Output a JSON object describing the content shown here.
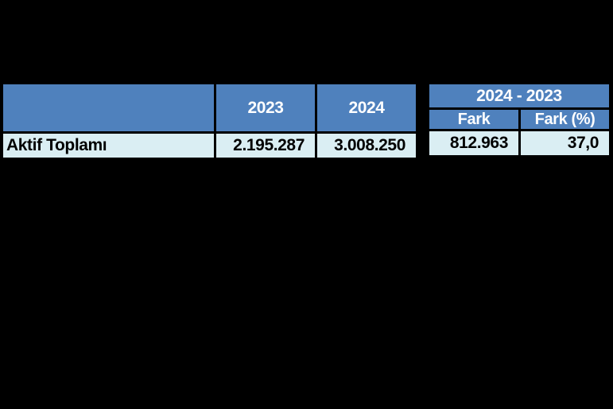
{
  "page": {
    "background_color": "#000000"
  },
  "colors": {
    "header_bg": "#4F81BD",
    "header_text": "#FFFFFF",
    "row_bg": "#DAEEF3",
    "row_text": "#000000",
    "grid_border": "#000000"
  },
  "main_table": {
    "header": {
      "label_col": "",
      "year_2023": "2023",
      "year_2024": "2024"
    },
    "rows": [
      {
        "label": "Aktif Toplamı",
        "value_2023": "2.195.287",
        "value_2024": "3.008.250"
      }
    ]
  },
  "diff_table": {
    "span_header": "2024 - 2023",
    "sub_headers": {
      "fark": "Fark",
      "fark_pct": "Fark (%)"
    },
    "rows": [
      {
        "fark": "812.963",
        "fark_pct": "37,0"
      }
    ]
  },
  "chart_data": {
    "type": "table",
    "title": "",
    "columns": [
      "",
      "2023",
      "2024",
      "Fark",
      "Fark (%)"
    ],
    "column_groups": [
      {
        "label": "2024 - 2023",
        "spans": [
          "Fark",
          "Fark (%)"
        ]
      }
    ],
    "rows": [
      [
        "Aktif Toplamı",
        "2.195.287",
        "3.008.250",
        "812.963",
        "37,0"
      ]
    ],
    "numeric_values": {
      "aktif_toplami_2023": 2195287,
      "aktif_toplami_2024": 3008250,
      "fark": 812963,
      "fark_pct": 37.0
    }
  }
}
